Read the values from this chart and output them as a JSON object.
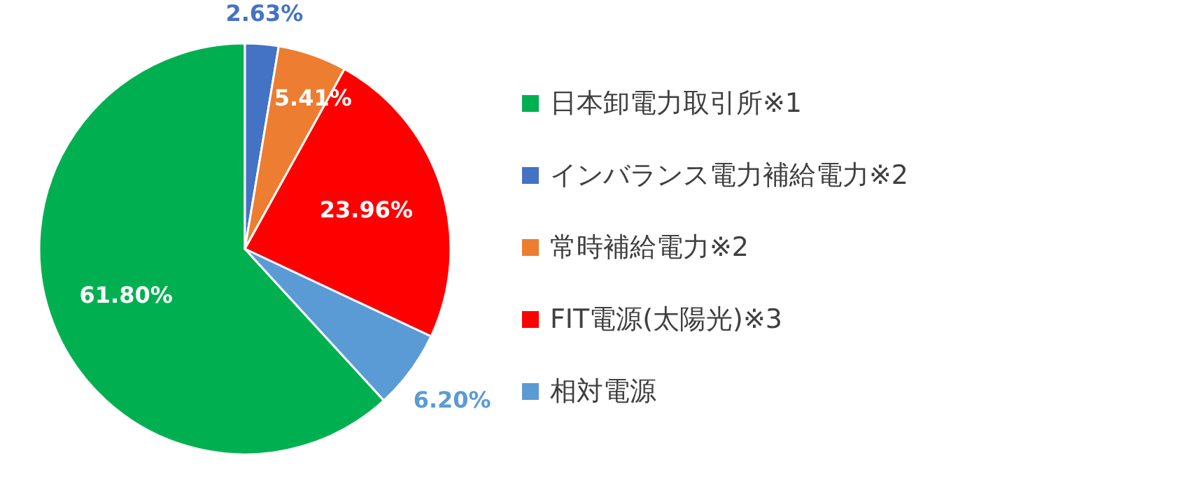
{
  "chart_data": {
    "type": "pie",
    "categories": [
      "日本卸電力取引所※1",
      "インバランス電力補給電力※2",
      "常時補給電力※2",
      "FIT電源(太陽光)※3",
      "相対電源"
    ],
    "values": [
      61.8,
      2.63,
      5.41,
      23.96,
      6.2
    ],
    "colors": [
      "#00b050",
      "#4472c4",
      "#ed7d31",
      "#ff0000",
      "#5b9bd5"
    ],
    "value_labels": [
      "61.80%",
      "2.63%",
      "5.41%",
      "23.96%",
      "6.20%"
    ],
    "legend": "right"
  }
}
